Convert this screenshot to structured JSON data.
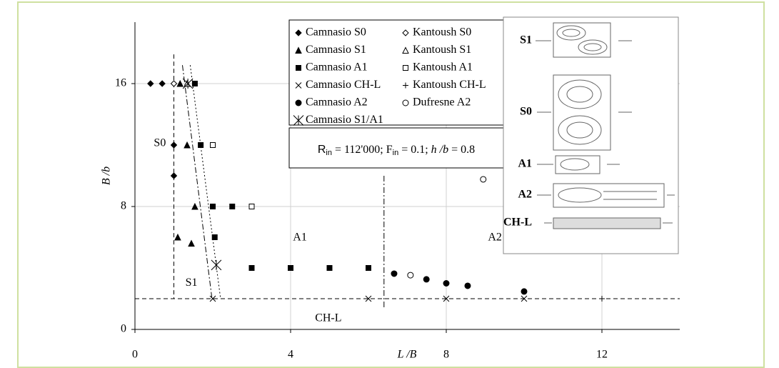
{
  "chart_data": {
    "type": "scatter",
    "x_label": "L /B",
    "y_label": "B /b",
    "xlim": [
      0,
      14
    ],
    "ylim": [
      0,
      20
    ],
    "xticks": [
      0,
      4,
      8,
      12
    ],
    "yticks": [
      0,
      8,
      16
    ],
    "grid": true,
    "series": [
      {
        "name": "Camnasio S0",
        "marker": "diamond",
        "filled": true,
        "color": "#000000",
        "x": [
          0.4,
          0.7,
          1.0,
          1.0
        ],
        "y": [
          16,
          16,
          12,
          10
        ]
      },
      {
        "name": "Kantoush S0",
        "marker": "diamond",
        "filled": false,
        "color": "#000000",
        "x": [
          1.0
        ],
        "y": [
          16
        ]
      },
      {
        "name": "Camnasio S1",
        "marker": "triangle",
        "filled": true,
        "color": "#000000",
        "x": [
          1.16,
          1.34,
          1.54,
          1.1,
          1.45
        ],
        "y": [
          16,
          12,
          8,
          6,
          5.6
        ]
      },
      {
        "name": "Kantoush S1",
        "marker": "triangle",
        "filled": false,
        "color": "#000000",
        "x": [
          1.34
        ],
        "y": [
          16
        ]
      },
      {
        "name": "Camnasio A1",
        "marker": "square",
        "filled": true,
        "color": "#000000",
        "x": [
          1.54,
          1.69,
          2.0,
          2.5,
          2.05,
          3,
          4,
          5,
          6
        ],
        "y": [
          16,
          12,
          8,
          8,
          6,
          4,
          4,
          4,
          4
        ]
      },
      {
        "name": "Kantoush A1",
        "marker": "square",
        "filled": false,
        "color": "#000000",
        "x": [
          2.0,
          3.0
        ],
        "y": [
          12,
          8
        ]
      },
      {
        "name": "Camnasio CH-L",
        "marker": "x",
        "filled": true,
        "color": "#000000",
        "x": [
          2,
          6,
          8,
          10
        ],
        "y": [
          2,
          2,
          2,
          2
        ]
      },
      {
        "name": "Kantoush CH-L",
        "marker": "plus",
        "filled": true,
        "color": "#000000",
        "x": [
          12
        ],
        "y": [
          2
        ]
      },
      {
        "name": "Camnasio A2",
        "marker": "circle",
        "filled": true,
        "color": "#000000",
        "x": [
          6.66,
          7.49,
          8.0,
          8.55,
          10.0
        ],
        "y": [
          3.63,
          3.26,
          3.0,
          2.84,
          2.47
        ]
      },
      {
        "name": "Dufresne A2",
        "marker": "circle",
        "filled": false,
        "color": "#000000",
        "x": [
          7.08,
          8.95
        ],
        "y": [
          3.53,
          9.77
        ]
      },
      {
        "name": "Camnasio S1/A1",
        "marker": "asterisk",
        "filled": true,
        "color": "#000000",
        "x": [
          1.36,
          2.09
        ],
        "y": [
          16,
          4.19
        ]
      }
    ],
    "boundaries": [
      {
        "style": "dashed",
        "x": [
          1,
          1
        ],
        "y": [
          17.9,
          2
        ]
      },
      {
        "style": "dashdot",
        "x": [
          1.22,
          1.98
        ],
        "y": [
          17.2,
          2
        ]
      },
      {
        "style": "dotted",
        "x": [
          1.42,
          2.2
        ],
        "y": [
          17.2,
          2
        ]
      },
      {
        "style": "dashed",
        "x": [
          0,
          14
        ],
        "y": [
          2,
          2
        ]
      },
      {
        "style": "dashdot",
        "x": [
          6.4,
          6.4
        ],
        "y": [
          10,
          1.3
        ]
      }
    ],
    "annotations": [
      {
        "text": "S0",
        "x": 0.64,
        "y": 12.1
      },
      {
        "text": "S1",
        "x": 1.45,
        "y": 3.0
      },
      {
        "text": "A1",
        "x": 4.24,
        "y": 5.95
      },
      {
        "text": "A2",
        "x": 9.25,
        "y": 5.95
      },
      {
        "text": "CH-L",
        "x": 4.97,
        "y": 0.7
      }
    ],
    "parameters": [
      {
        "text": "R"
      },
      {
        "sub": "in"
      },
      {
        "text": " = 112'000; F"
      },
      {
        "sub": "in"
      },
      {
        "text": " = 0.1; "
      },
      {
        "italic": "h /b"
      },
      {
        "text": " = 0.8"
      }
    ],
    "inset_labels": [
      "S1",
      "S0",
      "A1",
      "A2",
      "CH-L"
    ]
  }
}
